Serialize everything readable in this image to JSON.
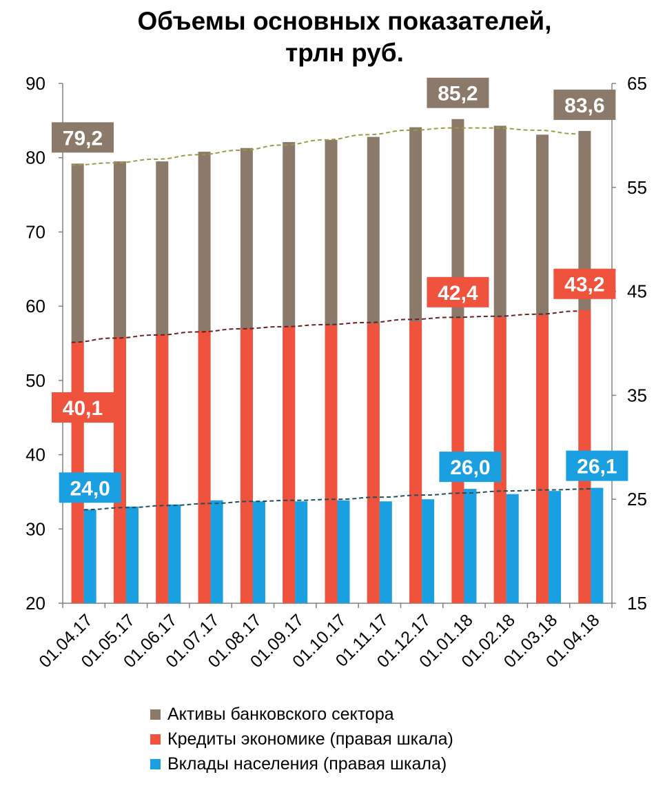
{
  "chart_data": {
    "type": "bar",
    "title_line1": "Объемы основных показателей,",
    "title_line2": "трлн руб.",
    "categories": [
      "01.04.17",
      "01.05.17",
      "01.06.17",
      "01.07.17",
      "01.08.17",
      "01.09.17",
      "01.10.17",
      "01.11.17",
      "01.12.17",
      "01.01.18",
      "01.02.18",
      "01.03.18",
      "01.04.18"
    ],
    "left_axis": {
      "min": 20,
      "max": 90,
      "ticks": [
        "20",
        "30",
        "40",
        "50",
        "60",
        "70",
        "80",
        "90"
      ]
    },
    "right_axis": {
      "min": 15,
      "max": 65,
      "ticks": [
        "15",
        "25",
        "35",
        "45",
        "55",
        "65"
      ]
    },
    "grid": false,
    "legend_position": "bottom",
    "series": [
      {
        "name": "Активы банковского сектора",
        "axis": "left",
        "color": "#8b7a69",
        "values": [
          79.2,
          79.5,
          79.5,
          80.8,
          81.3,
          82.1,
          82.4,
          82.8,
          84.1,
          85.2,
          84.3,
          83.1,
          83.6
        ],
        "trend": [
          79.0,
          79.3,
          79.8,
          80.4,
          81.0,
          81.7,
          82.4,
          83.1,
          83.7,
          84.0,
          84.0,
          83.7,
          83.2
        ],
        "trend_color": "#9c9a46",
        "labels": [
          {
            "index": 0,
            "text": "79,2"
          },
          {
            "index": 9,
            "text": "85,2"
          },
          {
            "index": 12,
            "text": "83,6"
          }
        ]
      },
      {
        "name": "Кредиты экономике (правая шкала)",
        "axis": "right",
        "color": "#f0533d",
        "values": [
          40.1,
          40.6,
          40.8,
          41.2,
          41.4,
          41.6,
          41.7,
          41.9,
          42.1,
          42.4,
          42.5,
          42.7,
          43.2
        ],
        "trend": [
          40.1,
          40.5,
          40.8,
          41.1,
          41.4,
          41.6,
          41.8,
          42.0,
          42.3,
          42.5,
          42.6,
          42.8,
          43.1
        ],
        "trend_color": "#6b1f24",
        "labels": [
          {
            "index": 0,
            "text": "40,1"
          },
          {
            "index": 9,
            "text": "42,4"
          },
          {
            "index": 12,
            "text": "43,2"
          }
        ]
      },
      {
        "name": "Вклады населения (правая шкала)",
        "axis": "right",
        "color": "#1a9fe0",
        "values": [
          24.0,
          24.3,
          24.5,
          24.9,
          24.8,
          24.8,
          24.9,
          24.8,
          25.0,
          26.0,
          25.5,
          25.8,
          26.1
        ],
        "trend": [
          24.0,
          24.2,
          24.4,
          24.6,
          24.8,
          24.9,
          25.0,
          25.2,
          25.4,
          25.6,
          25.8,
          25.9,
          26.0
        ],
        "trend_color": "#1d4f5e",
        "labels": [
          {
            "index": 0,
            "text": "24,0"
          },
          {
            "index": 9,
            "text": "26,0"
          },
          {
            "index": 12,
            "text": "26,1"
          }
        ]
      }
    ]
  }
}
